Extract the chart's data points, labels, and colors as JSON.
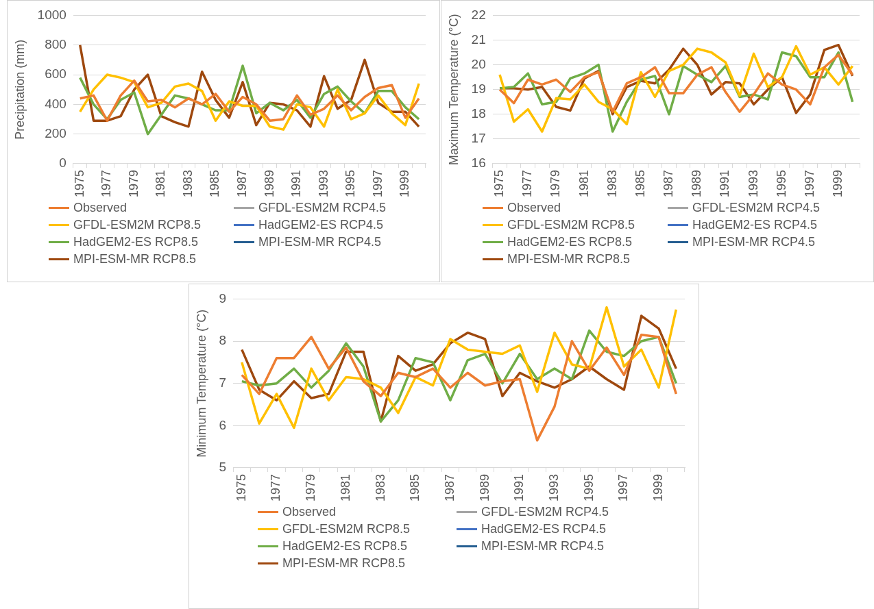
{
  "chart_data": [
    {
      "type": "line",
      "ylabel": "Precipitation (mm)",
      "categories": [
        "1975",
        null,
        "1977",
        null,
        "1979",
        null,
        "1981",
        null,
        "1983",
        null,
        "1985",
        null,
        "1987",
        null,
        "1989",
        null,
        "1991",
        null,
        "1993",
        null,
        "1995",
        null,
        "1997",
        null,
        "1999",
        null
      ],
      "ylim": [
        0,
        1000
      ],
      "yticks": [
        0,
        200,
        400,
        600,
        800,
        1000
      ],
      "grid": "y",
      "legend": "bottom",
      "marker": "none",
      "line_style": "solid",
      "series": [
        {
          "name": "Observed",
          "color": "#ed7d31",
          "values": [
            440,
            460,
            290,
            460,
            560,
            420,
            430,
            380,
            440,
            400,
            470,
            350,
            450,
            400,
            290,
            300,
            460,
            330,
            370,
            460,
            360,
            450,
            510,
            530,
            310,
            440
          ]
        },
        {
          "name": "GFDL-ESM2M RCP4.5",
          "color": "#a5a5a5",
          "values": [
            null,
            null,
            null,
            null,
            null,
            null,
            null,
            null,
            null,
            null,
            null,
            null,
            null,
            null,
            null,
            null,
            null,
            null,
            null,
            null,
            null,
            null,
            null,
            null,
            null,
            null
          ]
        },
        {
          "name": "GFDL-ESM2M RCP8.5",
          "color": "#ffc000",
          "values": [
            350,
            500,
            600,
            580,
            550,
            380,
            410,
            520,
            540,
            490,
            290,
            420,
            390,
            390,
            250,
            230,
            400,
            380,
            250,
            500,
            300,
            340,
            460,
            340,
            260,
            540
          ]
        },
        {
          "name": "HadGEM2-ES RCP4.5",
          "color": "#4472c4",
          "values": [
            null,
            null,
            null,
            null,
            null,
            null,
            null,
            null,
            null,
            null,
            null,
            null,
            null,
            null,
            null,
            null,
            null,
            null,
            null,
            null,
            null,
            null,
            null,
            null,
            null,
            null
          ]
        },
        {
          "name": "HadGEM2-ES RCP8.5",
          "color": "#70ad47",
          "values": [
            580,
            400,
            300,
            430,
            480,
            200,
            330,
            460,
            440,
            400,
            360,
            360,
            660,
            340,
            410,
            360,
            430,
            310,
            470,
            520,
            420,
            340,
            490,
            490,
            380,
            300
          ]
        },
        {
          "name": "MPI-ESM-MR RCP4.5",
          "color": "#255e91",
          "values": [
            null,
            null,
            null,
            null,
            null,
            null,
            null,
            null,
            null,
            null,
            null,
            null,
            null,
            null,
            null,
            null,
            null,
            null,
            null,
            null,
            null,
            null,
            null,
            null,
            null,
            null
          ]
        },
        {
          "name": "MPI-ESM-MR RCP8.5",
          "color": "#9e480e",
          "values": [
            800,
            290,
            290,
            320,
            500,
            600,
            320,
            280,
            250,
            620,
            430,
            310,
            550,
            260,
            410,
            400,
            360,
            250,
            590,
            370,
            430,
            700,
            410,
            350,
            350,
            250
          ]
        }
      ]
    },
    {
      "type": "line",
      "ylabel": "Maximum Temperature (°C)",
      "categories": [
        "1975",
        null,
        "1977",
        null,
        "1979",
        null,
        "1981",
        null,
        "1983",
        null,
        "1985",
        null,
        "1987",
        null,
        "1989",
        null,
        "1991",
        null,
        "1993",
        null,
        "1995",
        null,
        "1997",
        null,
        "1999",
        null
      ],
      "ylim": [
        16,
        22
      ],
      "yticks": [
        16,
        17,
        18,
        19,
        20,
        21,
        22
      ],
      "grid": "y",
      "legend": "bottom",
      "marker": "none",
      "line_style": "solid",
      "series": [
        {
          "name": "Observed",
          "color": "#ed7d31",
          "values": [
            19.0,
            18.45,
            19.4,
            19.2,
            19.4,
            18.9,
            19.5,
            19.7,
            18.1,
            19.25,
            19.5,
            19.9,
            18.85,
            18.85,
            19.6,
            19.9,
            18.9,
            18.1,
            18.8,
            19.65,
            19.2,
            19.0,
            18.4,
            19.9,
            20.4,
            19.6
          ]
        },
        {
          "name": "GFDL-ESM2M RCP4.5",
          "color": "#a5a5a5",
          "values": [
            null,
            null,
            null,
            null,
            null,
            null,
            null,
            null,
            null,
            null,
            null,
            null,
            null,
            null,
            null,
            null,
            null,
            null,
            null,
            null,
            null,
            null,
            null,
            null,
            null,
            null
          ]
        },
        {
          "name": "GFDL-ESM2M RCP8.5",
          "color": "#ffc000",
          "values": [
            19.6,
            17.7,
            18.2,
            17.3,
            18.65,
            18.6,
            19.2,
            18.5,
            18.2,
            17.6,
            19.7,
            18.7,
            19.75,
            20.0,
            20.65,
            20.5,
            20.1,
            18.75,
            20.45,
            19.1,
            19.5,
            20.75,
            19.6,
            19.9,
            19.2,
            19.95
          ]
        },
        {
          "name": "HadGEM2-ES RCP4.5",
          "color": "#4472c4",
          "values": [
            null,
            null,
            null,
            null,
            null,
            null,
            null,
            null,
            null,
            null,
            null,
            null,
            null,
            null,
            null,
            null,
            null,
            null,
            null,
            null,
            null,
            null,
            null,
            null,
            null,
            null
          ]
        },
        {
          "name": "HadGEM2-ES RCP8.5",
          "color": "#70ad47",
          "values": [
            19.05,
            19.1,
            19.65,
            18.4,
            18.5,
            19.45,
            19.65,
            20.0,
            17.3,
            18.5,
            19.4,
            19.55,
            18.0,
            19.95,
            19.6,
            19.3,
            19.95,
            18.7,
            18.8,
            18.6,
            20.5,
            20.35,
            19.5,
            19.5,
            20.5,
            18.5
          ]
        },
        {
          "name": "MPI-ESM-MR RCP4.5",
          "color": "#255e91",
          "values": [
            null,
            null,
            null,
            null,
            null,
            null,
            null,
            null,
            null,
            null,
            null,
            null,
            null,
            null,
            null,
            null,
            null,
            null,
            null,
            null,
            null,
            null,
            null,
            null,
            null,
            null
          ]
        },
        {
          "name": "MPI-ESM-MR RCP8.5",
          "color": "#9e480e",
          "values": [
            19.05,
            19.05,
            19.0,
            19.1,
            18.3,
            18.15,
            19.45,
            19.75,
            18.0,
            19.1,
            19.35,
            19.25,
            19.8,
            20.65,
            20.0,
            18.8,
            19.3,
            19.25,
            18.4,
            19.0,
            19.5,
            18.05,
            18.8,
            20.6,
            20.8,
            19.55
          ]
        }
      ]
    },
    {
      "type": "line",
      "ylabel": "Minimum Temperature (°C)",
      "categories": [
        "1975",
        null,
        "1977",
        null,
        "1979",
        null,
        "1981",
        null,
        "1983",
        null,
        "1985",
        null,
        "1987",
        null,
        "1989",
        null,
        "1991",
        null,
        "1993",
        null,
        "1995",
        null,
        "1997",
        null,
        "1999",
        null
      ],
      "ylim": [
        5,
        9
      ],
      "yticks": [
        5,
        6,
        7,
        8,
        9
      ],
      "grid": "y",
      "legend": "bottom",
      "marker": "none",
      "line_style": "solid",
      "series": [
        {
          "name": "Observed",
          "color": "#ed7d31",
          "values": [
            7.2,
            6.75,
            7.6,
            7.6,
            8.1,
            7.35,
            7.85,
            7.05,
            6.7,
            7.25,
            7.15,
            7.35,
            6.9,
            7.25,
            6.95,
            7.05,
            7.1,
            5.65,
            6.45,
            8.0,
            7.3,
            7.85,
            7.2,
            8.15,
            8.1,
            6.75
          ]
        },
        {
          "name": "GFDL-ESM2M RCP4.5",
          "color": "#a5a5a5",
          "values": [
            null,
            null,
            null,
            null,
            null,
            null,
            null,
            null,
            null,
            null,
            null,
            null,
            null,
            null,
            null,
            null,
            null,
            null,
            null,
            null,
            null,
            null,
            null,
            null,
            null,
            null
          ]
        },
        {
          "name": "GFDL-ESM2M RCP8.5",
          "color": "#ffc000",
          "values": [
            7.5,
            6.05,
            6.75,
            5.95,
            7.35,
            6.6,
            7.15,
            7.1,
            6.9,
            6.3,
            7.15,
            6.95,
            8.05,
            7.8,
            7.75,
            7.7,
            7.9,
            6.8,
            8.2,
            7.45,
            7.35,
            8.8,
            7.4,
            7.8,
            6.9,
            8.75
          ]
        },
        {
          "name": "HadGEM2-ES RCP4.5",
          "color": "#4472c4",
          "values": [
            null,
            null,
            null,
            null,
            null,
            null,
            null,
            null,
            null,
            null,
            null,
            null,
            null,
            null,
            null,
            null,
            null,
            null,
            null,
            null,
            null,
            null,
            null,
            null,
            null,
            null
          ]
        },
        {
          "name": "HadGEM2-ES RCP8.5",
          "color": "#70ad47",
          "values": [
            7.05,
            6.95,
            7.0,
            7.35,
            6.9,
            7.3,
            7.95,
            7.4,
            6.1,
            6.6,
            7.6,
            7.5,
            6.6,
            7.55,
            7.7,
            7.0,
            7.7,
            7.1,
            7.35,
            7.1,
            8.25,
            7.75,
            7.65,
            8.0,
            8.1,
            7.0
          ]
        },
        {
          "name": "MPI-ESM-MR RCP4.5",
          "color": "#255e91",
          "values": [
            null,
            null,
            null,
            null,
            null,
            null,
            null,
            null,
            null,
            null,
            null,
            null,
            null,
            null,
            null,
            null,
            null,
            null,
            null,
            null,
            null,
            null,
            null,
            null,
            null,
            null
          ]
        },
        {
          "name": "MPI-ESM-MR RCP8.5",
          "color": "#9e480e",
          "values": [
            7.8,
            6.85,
            6.6,
            7.05,
            6.65,
            6.75,
            7.75,
            7.75,
            6.1,
            7.65,
            7.3,
            7.45,
            7.95,
            8.2,
            8.05,
            6.7,
            7.25,
            7.05,
            6.9,
            7.1,
            7.4,
            7.1,
            6.85,
            8.6,
            8.3,
            7.35
          ]
        }
      ]
    }
  ]
}
